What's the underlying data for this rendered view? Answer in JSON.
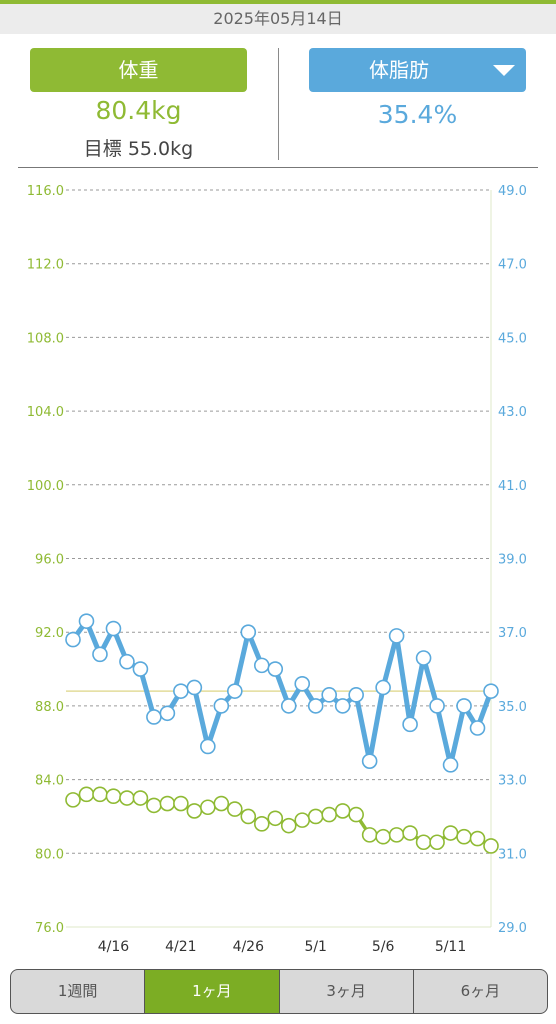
{
  "header": {
    "date": "2025年05月14日"
  },
  "summary": {
    "weight_button": "体重",
    "fat_button": "体脂肪",
    "weight_value": "80.4kg",
    "goal_text": "目標 55.0kg",
    "fat_value": "35.4%"
  },
  "colors": {
    "weight": "#8fba34",
    "fat": "#5aa9dc",
    "active_tab": "#7cad24"
  },
  "icons": {
    "fat_dropdown": "triangle-down-icon"
  },
  "tabs": [
    {
      "label": "1週間",
      "active": false
    },
    {
      "label": "1ヶ月",
      "active": true
    },
    {
      "label": "3ヶ月",
      "active": false
    },
    {
      "label": "6ヶ月",
      "active": false
    }
  ],
  "chart_data": {
    "type": "line",
    "left_axis": {
      "min": 76,
      "max": 116,
      "ticks": [
        "76.0",
        "80.0",
        "84.0",
        "88.0",
        "92.0",
        "96.0",
        "100.0",
        "104.0",
        "108.0",
        "112.0",
        "116.0"
      ]
    },
    "right_axis": {
      "min": 29,
      "max": 49,
      "ticks": [
        "29.0",
        "31.0",
        "33.0",
        "35.0",
        "37.0",
        "39.0",
        "41.0",
        "43.0",
        "45.0",
        "47.0",
        "49.0"
      ]
    },
    "x_labels": [
      {
        "label": "4/16",
        "index": 3
      },
      {
        "label": "4/21",
        "index": 8
      },
      {
        "label": "4/26",
        "index": 13
      },
      {
        "label": "5/1",
        "index": 18
      },
      {
        "label": "5/6",
        "index": 23
      },
      {
        "label": "5/11",
        "index": 28
      }
    ],
    "goal_line_right": 35.4,
    "grid": true,
    "series": [
      {
        "axis": "right",
        "values": [
          36.8,
          37.3,
          36.4,
          37.1,
          36.2,
          36.0,
          34.7,
          34.8,
          35.4,
          35.5,
          33.9,
          35.0,
          35.4,
          37.0,
          36.1,
          36.0,
          35.0,
          35.6,
          35.0,
          35.3,
          35.0,
          35.3,
          33.5,
          35.5,
          36.9,
          34.5,
          36.3,
          35.0,
          33.4,
          35.0,
          34.4,
          35.4
        ]
      },
      {
        "axis": "left",
        "values": [
          82.9,
          83.2,
          83.2,
          83.1,
          83.0,
          83.0,
          82.6,
          82.7,
          82.7,
          82.3,
          82.5,
          82.7,
          82.4,
          82.0,
          81.6,
          81.9,
          81.5,
          81.8,
          82.0,
          82.1,
          82.3,
          82.1,
          81.0,
          80.9,
          81.0,
          81.1,
          80.6,
          80.6,
          81.1,
          80.9,
          80.8,
          80.4
        ]
      }
    ]
  }
}
